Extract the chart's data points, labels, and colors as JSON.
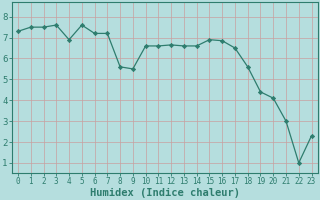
{
  "x": [
    0,
    1,
    2,
    3,
    4,
    5,
    6,
    7,
    8,
    9,
    10,
    11,
    12,
    13,
    14,
    15,
    16,
    17,
    18,
    19,
    20,
    21,
    22,
    23
  ],
  "y": [
    7.3,
    7.5,
    7.5,
    7.6,
    6.9,
    7.6,
    7.2,
    7.2,
    5.6,
    5.5,
    6.6,
    6.6,
    6.65,
    6.6,
    6.6,
    6.9,
    6.85,
    6.5,
    5.6,
    4.4,
    4.1,
    3.0,
    1.0,
    2.3
  ],
  "line_color": "#2e7d6e",
  "marker": "D",
  "marker_size": 2.2,
  "bg_color": "#b5dede",
  "grid_color": "#c8a0a0",
  "xlabel": "Humidex (Indice chaleur)",
  "xlabel_fontsize": 7.5,
  "xtick_labels": [
    "0",
    "1",
    "2",
    "3",
    "4",
    "5",
    "6",
    "7",
    "8",
    "9",
    "10",
    "11",
    "12",
    "13",
    "14",
    "15",
    "16",
    "17",
    "18",
    "19",
    "20",
    "21",
    "22",
    "23"
  ],
  "ytick_labels": [
    "1",
    "2",
    "3",
    "4",
    "5",
    "6",
    "7",
    "8"
  ],
  "ylim": [
    0.5,
    8.7
  ],
  "xlim": [
    -0.5,
    23.5
  ],
  "tick_color": "#2e7d6e",
  "tick_fontsize": 5.5,
  "ytick_fontsize": 6.5
}
